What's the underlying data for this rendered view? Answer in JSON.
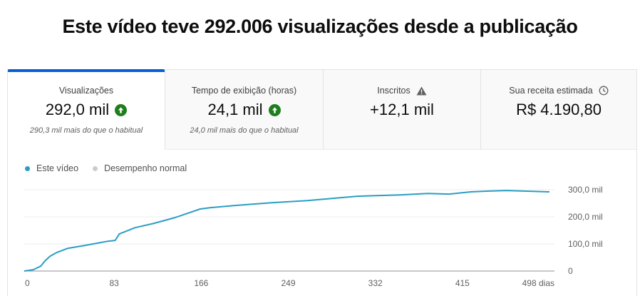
{
  "headline": "Este vídeo teve 292.006 visualizações desde a publicação",
  "tabs": [
    {
      "label": "Visualizações",
      "value": "292,0 mil",
      "sub": "290,3 mil mais do que o habitual",
      "icon": "arrow-up-circle-icon",
      "active": true
    },
    {
      "label": "Tempo de exibição (horas)",
      "value": "24,1 mil",
      "sub": "24,0 mil mais do que o habitual",
      "icon": "arrow-up-circle-icon",
      "active": false
    },
    {
      "label": "Inscritos",
      "value": "+12,1 mil",
      "sub": "",
      "label_icon": "warning-icon",
      "active": false
    },
    {
      "label": "Sua receita estimada",
      "value": "R$ 4.190,80",
      "sub": "",
      "label_icon": "clock-icon",
      "active": false
    }
  ],
  "colors": {
    "accent": "#065fd4",
    "series": "#2a9ec4",
    "normal": "#cccccc",
    "up": "#1e7e1e"
  },
  "legend": [
    {
      "label": "Este vídeo",
      "color": "#2a9ec4"
    },
    {
      "label": "Desempenho normal",
      "color": "#cccccc"
    }
  ],
  "chart_data": {
    "type": "line",
    "title": "",
    "xlabel": "dias",
    "ylabel": "Visualizações",
    "x_ticks": [
      "0",
      "83",
      "166",
      "249",
      "332",
      "415",
      "498 dias"
    ],
    "x_tick_values": [
      0,
      83,
      166,
      249,
      332,
      415,
      498
    ],
    "y_ticks": [
      "0",
      "100,0 mil",
      "200,0 mil",
      "300,0 mil"
    ],
    "y_tick_values": [
      0,
      100000,
      200000,
      300000
    ],
    "xlim": [
      0,
      498
    ],
    "ylim": [
      0,
      300000
    ],
    "grid": true,
    "legend_position": "top-left",
    "series": [
      {
        "name": "Este vídeo",
        "x": [
          0,
          6,
          13,
          17,
          22,
          28,
          39,
          59,
          77,
          84,
          88,
          103,
          121,
          141,
          153,
          165,
          175,
          199,
          233,
          267,
          315,
          356,
          382,
          402,
          423,
          440,
          457,
          498
        ],
        "values": [
          0,
          5000,
          18000,
          37000,
          55000,
          68000,
          84000,
          97000,
          110000,
          113000,
          137000,
          160000,
          176000,
          197000,
          213000,
          229000,
          234000,
          242000,
          252000,
          260000,
          276000,
          281000,
          286000,
          284000,
          292000,
          295000,
          297000,
          292000
        ]
      },
      {
        "name": "Desempenho normal",
        "x": [],
        "values": []
      }
    ]
  }
}
